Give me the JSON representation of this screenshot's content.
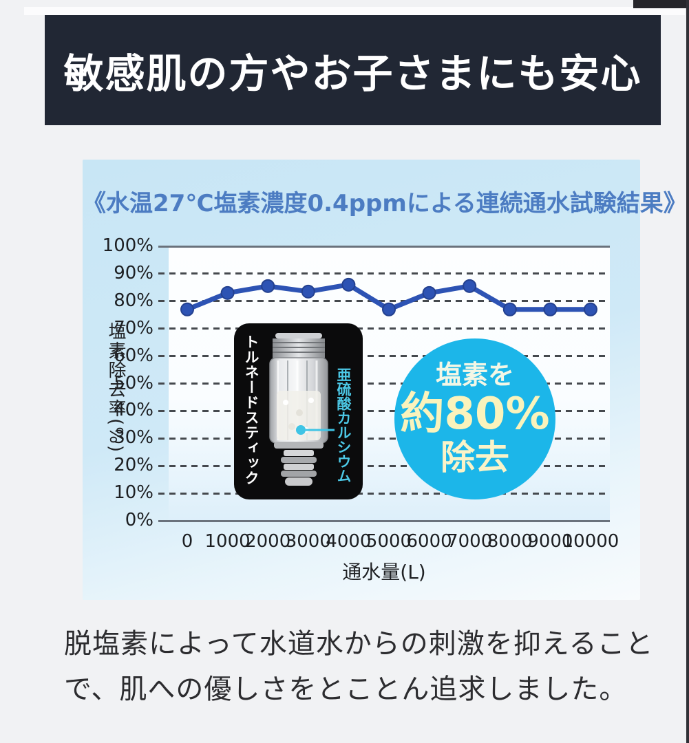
{
  "banner": {
    "title": "敏感肌の方やお子さまにも安心",
    "bg_color": "#212734",
    "text_color": "#ffffff"
  },
  "chart_panel": {
    "title": "《水温27℃塩素濃度0.4ppmによる連続通水試験結果》",
    "title_color": "#4c7cc2",
    "bg_color": "#cfe9f7"
  },
  "chart_data": {
    "type": "line",
    "title": "《水温27℃塩素濃度0.4ppmによる連続通水試験結果》",
    "x": [
      0,
      1000,
      2000,
      3000,
      4000,
      5000,
      6000,
      7000,
      8000,
      9000,
      10000
    ],
    "xticks": [
      "0",
      "1000",
      "2000",
      "3000",
      "4000",
      "5000",
      "6000",
      "7000",
      "8000",
      "9000",
      "10000"
    ],
    "values": [
      77,
      83,
      85.5,
      83.5,
      86,
      77,
      83,
      85.5,
      77,
      77,
      77
    ],
    "yticks": [
      "100%",
      "90%",
      "80%",
      "70%",
      "60%",
      "50%",
      "40%",
      "30%",
      "20%",
      "10%",
      "0%"
    ],
    "ylim": [
      0,
      100
    ],
    "ytick_step": 10,
    "xlabel": "通水量(L)",
    "ylabel": "塩素除去率(%)",
    "grid": "horizontal dashed, solid at 0% and 100%",
    "legend": "none",
    "line_color": "#2d53b4"
  },
  "product_box": {
    "left_label": "トルネードスティック",
    "right_label": "亜硫酸カルシウム",
    "right_label_color": "#4cc8e6",
    "bg_color": "#0b0b0c",
    "pointer_color": "#3fc4e5"
  },
  "badge": {
    "line1": "塩素を",
    "line2": "約80%",
    "line3": "除去",
    "bg_color": "#1cb6e9",
    "line1_color": "#f3f7e6",
    "line2_color": "#faf3bc"
  },
  "caption": {
    "line1": "脱塩素によって水道水からの刺激を抑えること",
    "line2": "で、肌への優しさをとことん追求しました。"
  }
}
